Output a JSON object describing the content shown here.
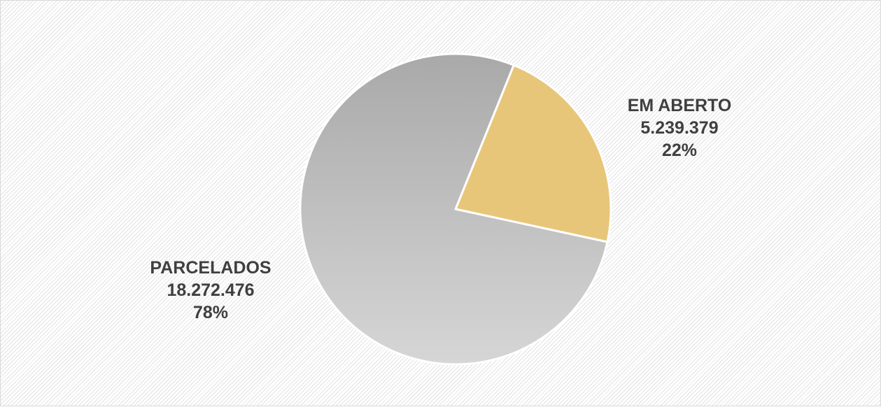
{
  "chart_data": {
    "type": "pie",
    "title": "",
    "slices": [
      {
        "label": "EM ABERTO",
        "value": 5239379,
        "value_text": "5.239.379",
        "percent": 22,
        "percent_text": "22%",
        "color": "#e8c679"
      },
      {
        "label": "PARCELADOS",
        "value": 18272476,
        "value_text": "18.272.476",
        "percent": 78,
        "percent_text": "78%",
        "color": "#c2c2c2"
      }
    ],
    "label_color": "#3f3f3f",
    "start_angle_deg": 22,
    "direction": "clockwise",
    "legend": "none"
  }
}
